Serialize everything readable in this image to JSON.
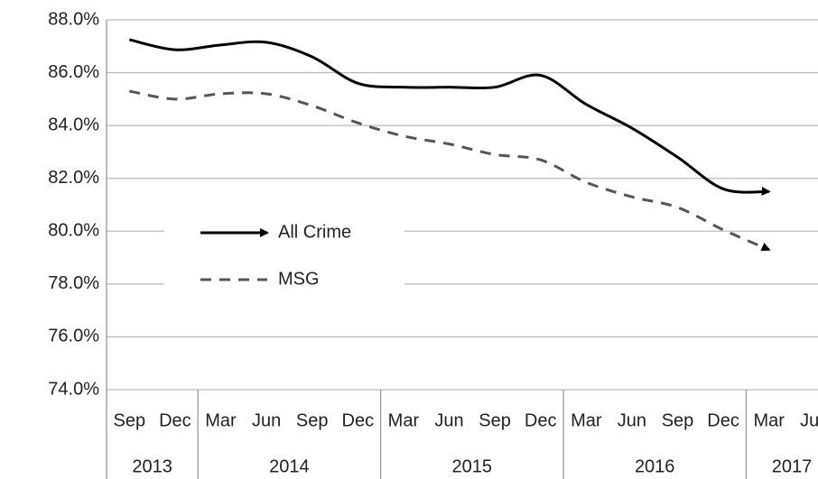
{
  "chart_data": {
    "type": "line",
    "categories": [
      "Sep",
      "Dec",
      "Mar",
      "Jun",
      "Sep",
      "Dec",
      "Mar",
      "Jun",
      "Sep",
      "Dec",
      "Mar",
      "Jun",
      "Sep",
      "Dec",
      "Mar",
      "Jun"
    ],
    "category_groups": [
      "2013",
      "2013",
      "2014",
      "2014",
      "2014",
      "2014",
      "2015",
      "2015",
      "2015",
      "2015",
      "2016",
      "2016",
      "2016",
      "2016",
      "2017",
      "2017"
    ],
    "series": [
      {
        "name": "All Crime",
        "color": "#000000",
        "dash": "solid",
        "values": [
          87.25,
          86.87,
          87.05,
          87.15,
          86.6,
          85.6,
          85.45,
          85.45,
          85.45,
          85.9,
          84.8,
          83.9,
          82.8,
          81.6,
          81.5,
          null
        ]
      },
      {
        "name": "MSG",
        "color": "#555555",
        "dash": "dashed",
        "values": [
          85.3,
          85.0,
          85.2,
          85.2,
          84.75,
          84.1,
          83.6,
          83.3,
          82.9,
          82.7,
          81.85,
          81.3,
          80.9,
          80.05,
          79.3,
          null
        ]
      }
    ],
    "ylim": [
      74,
      88
    ],
    "yticks": [
      {
        "value": 74,
        "label": "74.0%"
      },
      {
        "value": 76,
        "label": "76.0%"
      },
      {
        "value": 78,
        "label": "78.0%"
      },
      {
        "value": 80,
        "label": "80.0%"
      },
      {
        "value": 82,
        "label": "82.0%"
      },
      {
        "value": 84,
        "label": "84.0%"
      },
      {
        "value": 86,
        "label": "86.0%"
      },
      {
        "value": 88,
        "label": "88.0%"
      }
    ],
    "grid": true,
    "legend": "center-left"
  }
}
